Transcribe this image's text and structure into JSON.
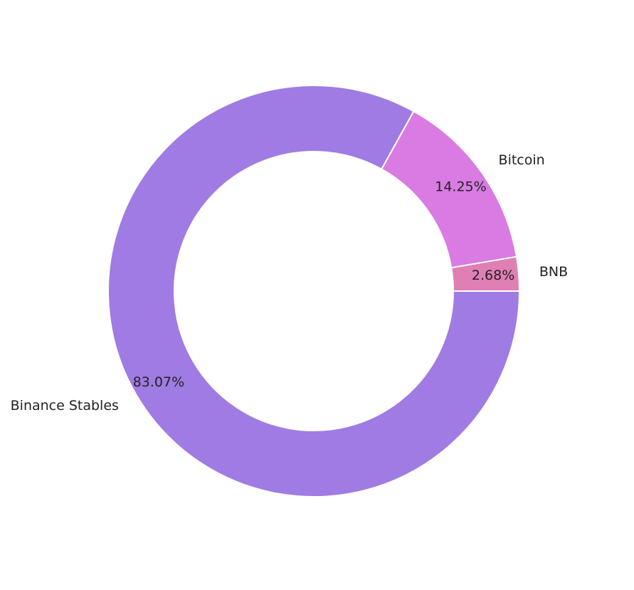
{
  "chart_data": {
    "type": "donut",
    "categories": [
      "BNB",
      "Bitcoin",
      "Binance Stables"
    ],
    "values": [
      2.68,
      14.25,
      83.07
    ],
    "value_labels": [
      "2.68%",
      "14.25%",
      "83.07%"
    ],
    "colors": [
      "#e07fb4",
      "#d97be3",
      "#a07be3"
    ]
  }
}
